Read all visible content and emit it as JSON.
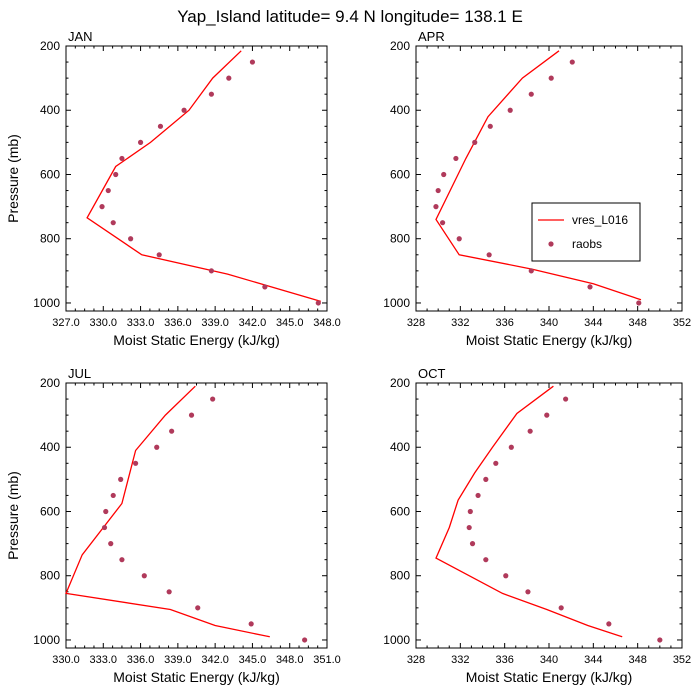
{
  "figure": {
    "title": "Yap_Island  latitude= 9.4 N longitude= 138.1 E"
  },
  "colors": {
    "model_line": "#ff0000",
    "obs_marker": "#b03a5b",
    "axis": "#000000"
  },
  "legend": {
    "location": "APR panel, lower-right",
    "entries": [
      "vres_L016",
      "raobs"
    ]
  },
  "chart_data": [
    {
      "type": "line",
      "panel_label": "JAN",
      "xlabel": "Moist Static Energy (kJ/kg)",
      "ylabel": "Pressure (mb)",
      "xlim": [
        327,
        348
      ],
      "ylim": [
        1025,
        200
      ],
      "xticks": [
        327,
        330,
        333,
        336,
        339,
        342,
        345,
        348
      ],
      "xtick_labels": [
        "327.0",
        "330.0",
        "333.0",
        "336.0",
        "339.0",
        "342.0",
        "345.0",
        "348.0"
      ],
      "yticks": [
        200,
        400,
        600,
        800,
        1000
      ],
      "ytick_labels": [
        "200",
        "400",
        "600",
        "800",
        "1000"
      ],
      "series": [
        {
          "name": "vres_L016",
          "kind": "line",
          "x": [
            341.1,
            338.8,
            336.9,
            333.8,
            331.0,
            328.7,
            333.1,
            340.0,
            347.5
          ],
          "y": [
            215,
            300,
            400,
            500,
            575,
            735,
            850,
            910,
            995
          ]
        },
        {
          "name": "raobs",
          "kind": "scatter",
          "x": [
            342.0,
            340.1,
            338.7,
            336.5,
            334.6,
            333.0,
            331.5,
            331.0,
            330.4,
            329.9,
            330.8,
            332.2,
            334.5,
            338.7,
            343.0,
            347.3
          ],
          "y": [
            250,
            300,
            350,
            400,
            450,
            500,
            550,
            600,
            650,
            700,
            750,
            800,
            850,
            900,
            950,
            1000
          ]
        }
      ]
    },
    {
      "type": "line",
      "panel_label": "APR",
      "xlabel": "Moist Static Energy (kJ/kg)",
      "ylabel": "",
      "xlim": [
        328,
        352
      ],
      "ylim": [
        1025,
        200
      ],
      "xticks": [
        328,
        332,
        336,
        340,
        344,
        348,
        352
      ],
      "xtick_labels": [
        "328",
        "332",
        "336",
        "340",
        "344",
        "348",
        "352"
      ],
      "yticks": [
        200,
        400,
        600,
        800,
        1000
      ],
      "ytick_labels": [
        "200",
        "400",
        "600",
        "800",
        "1000"
      ],
      "series": [
        {
          "name": "vres_L016",
          "kind": "line",
          "x": [
            340.9,
            337.6,
            334.5,
            332.5,
            329.8,
            331.9,
            338.5,
            344.0,
            348.3
          ],
          "y": [
            215,
            300,
            420,
            550,
            740,
            850,
            895,
            940,
            990
          ]
        },
        {
          "name": "raobs",
          "kind": "scatter",
          "x": [
            342.1,
            340.2,
            338.4,
            336.5,
            334.7,
            333.3,
            331.6,
            330.5,
            330.0,
            329.8,
            330.4,
            331.9,
            334.6,
            338.4,
            343.7,
            348.1
          ],
          "y": [
            250,
            300,
            350,
            400,
            450,
            500,
            550,
            600,
            650,
            700,
            750,
            800,
            850,
            900,
            950,
            1000
          ]
        }
      ]
    },
    {
      "type": "line",
      "panel_label": "JUL",
      "xlabel": "Moist Static Energy (kJ/kg)",
      "ylabel": "Pressure (mb)",
      "xlim": [
        330,
        351
      ],
      "ylim": [
        1025,
        200
      ],
      "xticks": [
        330,
        333,
        336,
        339,
        342,
        345,
        348,
        351
      ],
      "xtick_labels": [
        "330.0",
        "333.0",
        "336.0",
        "339.0",
        "342.0",
        "345.0",
        "348.0",
        "351.0"
      ],
      "yticks": [
        200,
        400,
        600,
        800,
        1000
      ],
      "ytick_labels": [
        "200",
        "400",
        "600",
        "800",
        "1000"
      ],
      "series": [
        {
          "name": "vres_L016",
          "kind": "line",
          "x": [
            340.4,
            338.0,
            335.6,
            334.5,
            331.3,
            330.0,
            338.4,
            342.0,
            346.4
          ],
          "y": [
            210,
            300,
            410,
            575,
            735,
            855,
            905,
            955,
            990
          ]
        },
        {
          "name": "raobs",
          "kind": "scatter",
          "x": [
            341.8,
            340.1,
            338.5,
            337.3,
            335.6,
            334.4,
            333.8,
            333.2,
            333.1,
            333.6,
            334.5,
            336.3,
            338.3,
            340.6,
            344.9,
            349.2
          ],
          "y": [
            250,
            300,
            350,
            400,
            450,
            500,
            550,
            600,
            650,
            700,
            750,
            800,
            850,
            900,
            950,
            1000
          ]
        }
      ]
    },
    {
      "type": "line",
      "panel_label": "OCT",
      "xlabel": "Moist Static Energy (kJ/kg)",
      "ylabel": "",
      "xlim": [
        328,
        352
      ],
      "ylim": [
        1025,
        200
      ],
      "xticks": [
        328,
        332,
        336,
        340,
        344,
        348,
        352
      ],
      "xtick_labels": [
        "328",
        "332",
        "336",
        "340",
        "344",
        "348",
        "352"
      ],
      "yticks": [
        200,
        400,
        600,
        800,
        1000
      ],
      "ytick_labels": [
        "200",
        "400",
        "600",
        "800",
        "1000"
      ],
      "series": [
        {
          "name": "vres_L016",
          "kind": "line",
          "x": [
            340.4,
            337.1,
            334.9,
            333.3,
            331.8,
            331.0,
            329.8,
            335.8,
            339.8,
            343.5,
            346.6
          ],
          "y": [
            210,
            295,
            400,
            480,
            565,
            650,
            745,
            855,
            905,
            955,
            990
          ]
        },
        {
          "name": "raobs",
          "kind": "scatter",
          "x": [
            341.5,
            339.8,
            338.3,
            336.6,
            335.2,
            334.3,
            333.6,
            332.9,
            332.8,
            333.1,
            334.3,
            336.1,
            338.1,
            341.1,
            345.4,
            350.0
          ],
          "y": [
            250,
            300,
            350,
            400,
            450,
            500,
            550,
            600,
            650,
            700,
            750,
            800,
            850,
            900,
            950,
            1000
          ]
        }
      ]
    }
  ]
}
